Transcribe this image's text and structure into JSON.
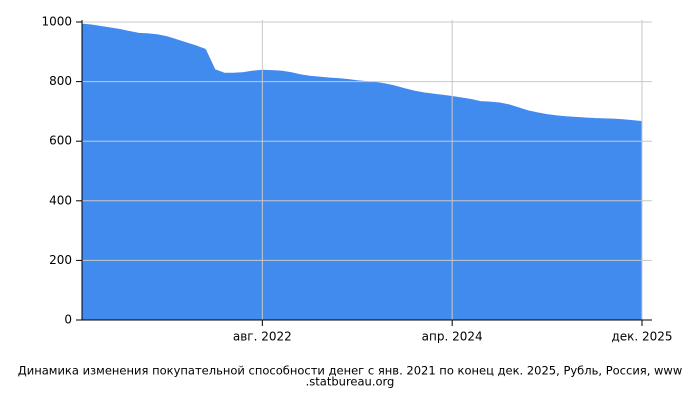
{
  "chart_data": {
    "type": "area",
    "title_lines": [
      "Динамика изменения покупательной способности денег с янв. 2021 по конец дек. 2025, Рубль, Россия, www",
      ".statbureau.org"
    ],
    "categories": [
      null,
      null,
      null,
      null,
      null,
      null,
      null,
      null,
      null,
      null,
      null,
      null,
      null,
      null,
      null,
      null,
      null,
      null,
      null,
      "авг. 2022",
      null,
      null,
      null,
      null,
      null,
      null,
      null,
      null,
      null,
      null,
      null,
      null,
      null,
      null,
      null,
      null,
      null,
      null,
      null,
      "апр. 2024",
      null,
      null,
      null,
      null,
      null,
      null,
      null,
      null,
      null,
      null,
      null,
      null,
      null,
      null,
      null,
      null,
      null,
      null,
      null,
      "дек. 2025"
    ],
    "values": [
      993,
      990,
      985,
      980,
      975,
      968,
      962,
      960,
      957,
      950,
      940,
      930,
      920,
      908,
      840,
      828,
      828,
      830,
      835,
      838,
      837,
      835,
      830,
      823,
      818,
      815,
      812,
      810,
      807,
      803,
      800,
      797,
      792,
      785,
      776,
      768,
      762,
      758,
      754,
      750,
      745,
      740,
      733,
      731,
      728,
      722,
      712,
      702,
      695,
      689,
      685,
      682,
      680,
      678,
      676,
      675,
      674,
      672,
      669,
      666
    ],
    "color": "#428bee",
    "ylim": [
      0,
      1000
    ],
    "yticks": [
      0,
      200,
      400,
      600,
      800,
      1000
    ],
    "grid": true
  }
}
